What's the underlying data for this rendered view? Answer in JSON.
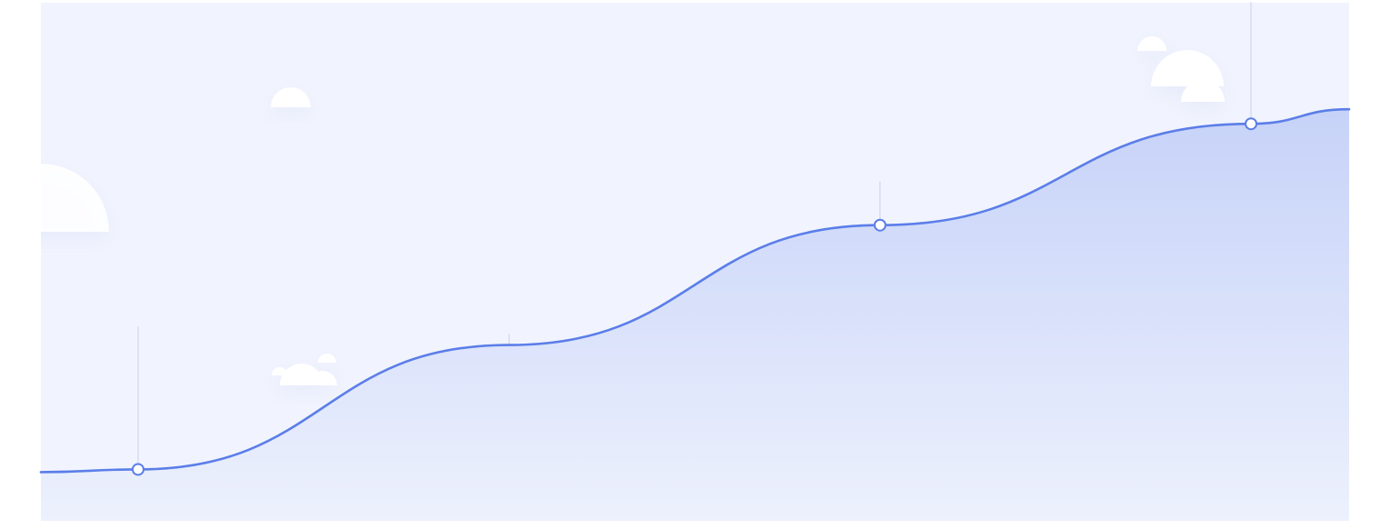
{
  "colors": {
    "panel_background": "#f1f4fe",
    "line": "#5b7ee8",
    "area_top": "#c6d2f8",
    "area_bottom": "#edf1fd",
    "marker_fill": "#ffffff",
    "guide_line": "#c9d1ea",
    "cloud": "#ffffff"
  },
  "chart_data": {
    "type": "area",
    "title": "",
    "xlabel": "",
    "ylabel": "",
    "grid": false,
    "legend": "none",
    "axes_visible": false,
    "x": [
      0,
      1,
      2,
      3
    ],
    "series": [
      {
        "values": [
          0.08,
          0.35,
          0.61,
          0.83
        ]
      }
    ],
    "highlighted_points": [
      0,
      2,
      3
    ],
    "ylim": [
      0,
      1
    ]
  },
  "decorations": {
    "clouds": "cloud-icon"
  }
}
